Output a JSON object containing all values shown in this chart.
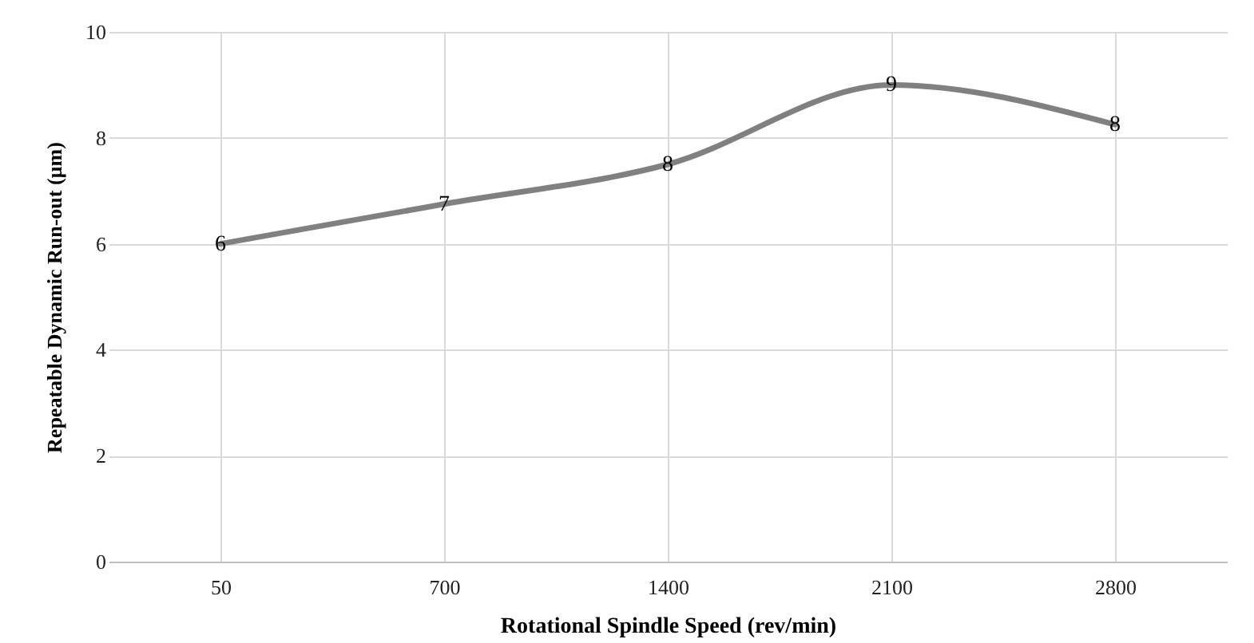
{
  "chart_data": {
    "type": "line",
    "xlabel": "Rotational Spindle Speed (rev/min)",
    "ylabel": "Repeatable Dynamic  Run-out (µm)",
    "categories": [
      "50",
      "700",
      "1400",
      "2100",
      "2800"
    ],
    "series": [
      {
        "color": "#808080",
        "values": [
          6,
          6.75,
          7.5,
          9,
          8.25
        ],
        "value_labels": [
          "6",
          "7",
          "8",
          "9",
          "8"
        ]
      }
    ],
    "ylim": [
      0,
      10
    ],
    "yticks": [
      0,
      2,
      4,
      6,
      8,
      10
    ],
    "grid": true,
    "marker": "none",
    "line_style": "solid"
  }
}
